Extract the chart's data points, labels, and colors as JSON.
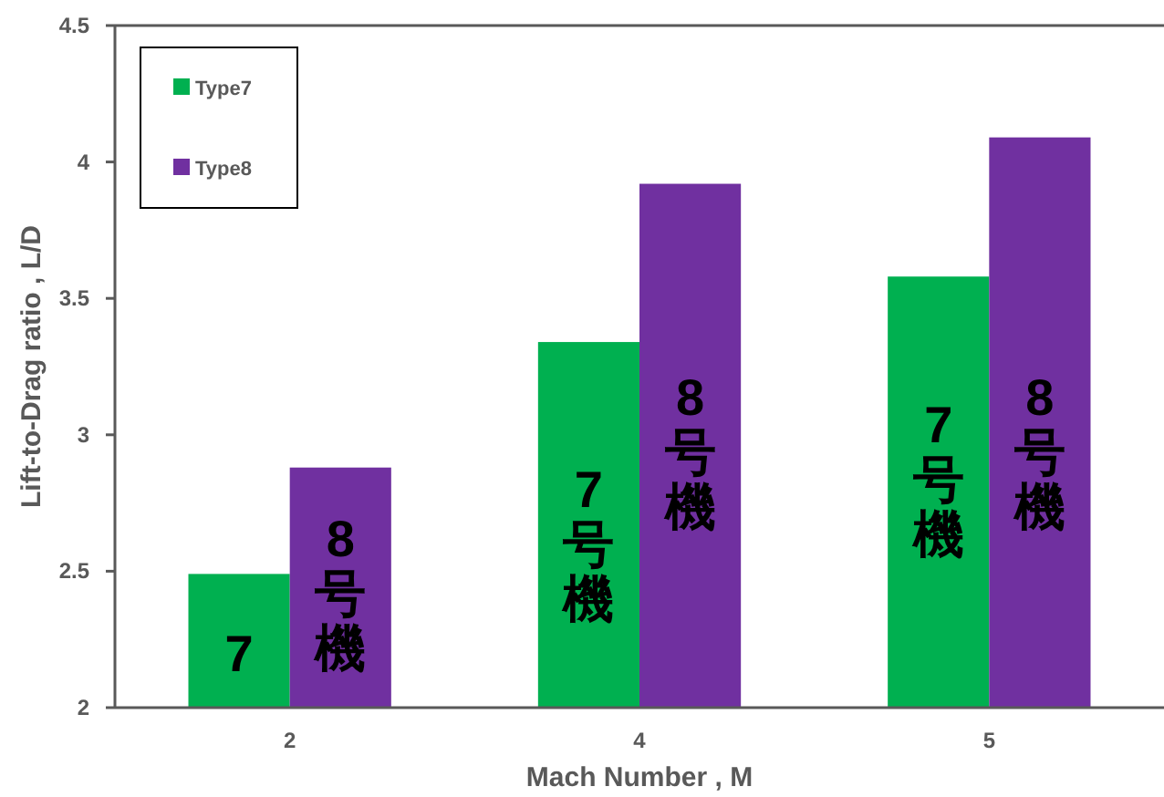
{
  "chart_data": {
    "type": "bar",
    "xlabel": "Mach Number , M",
    "ylabel": "Lift-to-Drag ratio , L/D",
    "categories": [
      "2",
      "4",
      "5"
    ],
    "series": [
      {
        "name": "Type7",
        "color": "#00b050",
        "values": [
          2.49,
          3.34,
          3.58
        ]
      },
      {
        "name": "Type8",
        "color": "#7030a0",
        "values": [
          2.88,
          3.92,
          4.09
        ]
      }
    ],
    "ylim": [
      2,
      4.5
    ],
    "yticks": [
      2,
      2.5,
      3,
      3.5,
      4,
      4.5
    ],
    "legend": "top left",
    "annotations": [
      {
        "text": "7",
        "x": "2",
        "y": 2.2
      },
      {
        "text": "8号機",
        "x": "2",
        "y": 2.42
      },
      {
        "text": "7号機",
        "x": "4",
        "y": 2.6
      },
      {
        "text": "8号機",
        "x": "4",
        "y": 2.94
      },
      {
        "text": "7号機",
        "x": "5",
        "y": 2.84
      },
      {
        "text": "8号機",
        "x": "5",
        "y": 2.94
      }
    ]
  }
}
